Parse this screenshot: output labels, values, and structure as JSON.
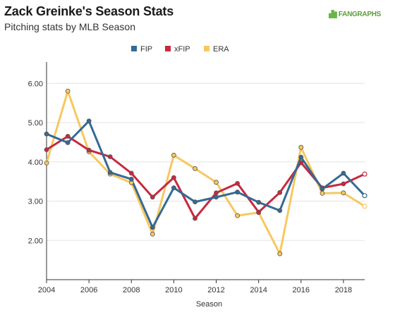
{
  "header": {
    "title": "Zack Greinke's Season Stats",
    "subtitle": "Pitching stats by MLB Season",
    "brand": "FANGRAPHS"
  },
  "chart_data": {
    "type": "line",
    "title": "Zack Greinke's Season Stats",
    "subtitle": "Pitching stats by MLB Season",
    "xlabel": "Season",
    "ylabel": "",
    "xlim": [
      2004,
      2019
    ],
    "ylim": [
      1.0,
      6.4
    ],
    "x_ticks": [
      2004,
      2006,
      2008,
      2010,
      2012,
      2014,
      2016,
      2018
    ],
    "y_ticks": [
      2.0,
      3.0,
      4.0,
      5.0,
      6.0
    ],
    "y_tick_labels": [
      "2.00",
      "3.00",
      "4.00",
      "5.00",
      "6.00"
    ],
    "grid": "horizontal",
    "legend_position": "top-center",
    "x": [
      2004,
      2005,
      2006,
      2007,
      2008,
      2009,
      2010,
      2011,
      2012,
      2013,
      2014,
      2015,
      2016,
      2017,
      2018,
      2019
    ],
    "series": [
      {
        "name": "FIP",
        "color": "#346a95",
        "values": [
          4.71,
          4.49,
          5.04,
          3.73,
          3.56,
          2.33,
          3.34,
          2.98,
          3.1,
          3.23,
          2.97,
          2.76,
          4.12,
          3.31,
          3.71,
          3.14
        ]
      },
      {
        "name": "xFIP",
        "color": "#c9283e",
        "values": [
          4.31,
          4.65,
          4.3,
          4.13,
          3.71,
          3.1,
          3.6,
          2.56,
          3.21,
          3.45,
          2.72,
          3.22,
          3.98,
          3.34,
          3.44,
          3.69
        ]
      },
      {
        "name": "ERA",
        "color": "#f7c860",
        "values": [
          3.97,
          5.8,
          4.26,
          3.69,
          3.47,
          2.16,
          4.17,
          3.83,
          3.48,
          2.63,
          2.71,
          1.66,
          4.37,
          3.2,
          3.21,
          2.87
        ]
      }
    ]
  }
}
